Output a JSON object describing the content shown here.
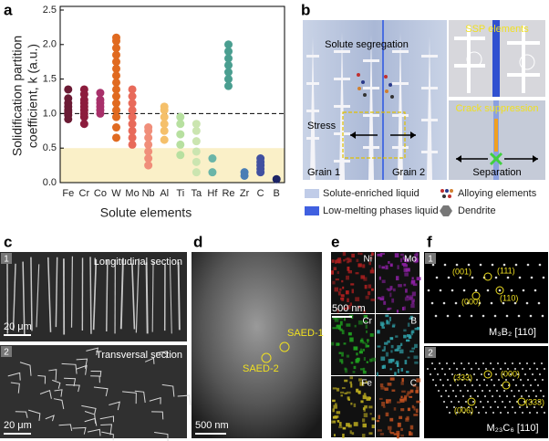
{
  "panel_labels": [
    "a",
    "b",
    "c",
    "d",
    "e",
    "f"
  ],
  "chart_data": {
    "type": "strip",
    "categories": [
      "Fe",
      "Cr",
      "Co",
      "W",
      "Mo",
      "Nb",
      "Al",
      "Ti",
      "Ta",
      "Hf",
      "Re",
      "Zr",
      "C",
      "B"
    ],
    "colors": [
      "#6b1a34",
      "#8c1c3c",
      "#a8306a",
      "#e06a20",
      "#e86a5a",
      "#f08e7a",
      "#f5c06a",
      "#b7e0a0",
      "#cbe5b0",
      "#6ab5a8",
      "#4a9e90",
      "#4a7eb5",
      "#4050a0",
      "#1c2466"
    ],
    "values": [
      [
        0.92,
        0.98,
        1.02,
        1.05,
        1.1,
        1.15,
        1.22,
        1.35
      ],
      [
        0.85,
        0.95,
        1.0,
        1.05,
        1.1,
        1.15,
        1.2,
        1.28,
        1.35
      ],
      [
        1.0,
        1.05,
        1.1,
        1.15,
        1.2,
        1.3
      ],
      [
        0.65,
        0.8,
        0.95,
        1.05,
        1.15,
        1.25,
        1.35,
        1.45,
        1.55,
        1.65,
        1.75,
        1.85,
        1.95,
        2.05,
        2.1
      ],
      [
        0.55,
        0.65,
        0.75,
        0.85,
        0.95,
        1.05,
        1.15,
        1.25,
        1.35
      ],
      [
        0.25,
        0.35,
        0.45,
        0.55,
        0.65,
        0.75,
        0.8
      ],
      [
        0.62,
        0.75,
        0.85,
        0.95,
        1.05,
        1.1
      ],
      [
        0.4,
        0.55,
        0.7,
        0.85,
        0.95
      ],
      [
        0.15,
        0.3,
        0.45,
        0.6,
        0.75,
        0.85
      ],
      [
        0.15,
        0.35
      ],
      [
        1.4,
        1.5,
        1.6,
        1.7,
        1.8,
        1.9,
        2.0
      ],
      [
        0.1,
        0.15
      ],
      [
        0.15,
        0.2,
        0.25,
        0.3,
        0.35
      ],
      [
        0.05
      ]
    ],
    "ylim": [
      0,
      2.5
    ],
    "yticks": [
      {
        "value": 0,
        "label": "0.0"
      },
      0.5,
      {
        "value": 1,
        "label": "1.0"
      },
      1.5,
      {
        "value": 2,
        "label": "2.0"
      },
      2.5
    ],
    "ylabel": [
      "Solidification partition",
      "coefficient, k (a.u.)"
    ],
    "xlabel": "Solute elements",
    "reference_line": 1,
    "band": [
      0,
      0.5
    ],
    "band_color": "#faf0c8"
  },
  "panel_b": {
    "title": "Solute segregation",
    "stress": "Stress",
    "grains": [
      "Grain 1",
      "Grain 2"
    ],
    "inset_top": "SSP elements",
    "inset_bottom": "Crack suppression",
    "separation": "Separation",
    "legend": [
      "Solute-enriched liquid",
      "Alloying elements",
      "Low-melting phases liquid",
      "Dendrite"
    ]
  },
  "panel_c": {
    "numbers": [
      "1",
      "2"
    ],
    "sections": [
      "Longitudinal section",
      "Transversal section"
    ],
    "scale": [
      "20 μm",
      "20 μm"
    ]
  },
  "panel_d": {
    "spots": [
      "SAED-1",
      "SAED-2"
    ],
    "scale": "500 nm"
  },
  "panel_e": {
    "elements": [
      "Ni",
      "Mo",
      "Cr",
      "B",
      "Fe",
      "C"
    ],
    "scale": "500 nm"
  },
  "panel_f": {
    "numbers": [
      "1",
      "2"
    ],
    "top_spots": [
      "(001)",
      "(111)",
      "(000)",
      "(110)"
    ],
    "top_phase": "M₃B₂ [110]",
    "bottom_spots": [
      "(333)",
      "(000)",
      "(006)",
      "(333)"
    ],
    "bottom_phase": "M₂₃C₆ [110]"
  }
}
